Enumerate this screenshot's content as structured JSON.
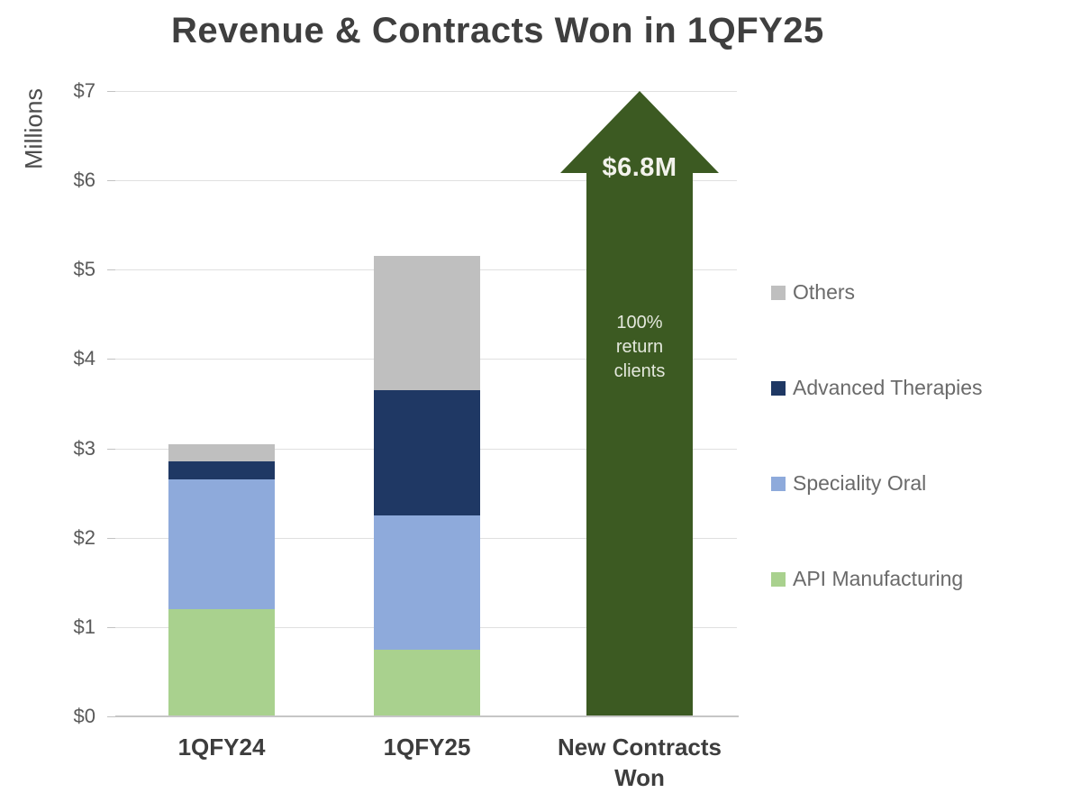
{
  "title": "Revenue & Contracts Won in 1QFY25",
  "y_axis": {
    "label": "Millions",
    "ticks": [
      {
        "label": "$7",
        "value": 7
      },
      {
        "label": "$6",
        "value": 6
      },
      {
        "label": "$5",
        "value": 5
      },
      {
        "label": "$4",
        "value": 4
      },
      {
        "label": "$3",
        "value": 3
      },
      {
        "label": "$2",
        "value": 2
      },
      {
        "label": "$1",
        "value": 1
      },
      {
        "label": "$0",
        "value": 0
      }
    ]
  },
  "legend": {
    "items": [
      {
        "label": "Others",
        "color": "#BFBFBF"
      },
      {
        "label": "Advanced Therapies",
        "color": "#1F3864"
      },
      {
        "label": "Speciality Oral",
        "color": "#8EAADB"
      },
      {
        "label": "API Manufacturing",
        "color": "#A9D18E"
      }
    ]
  },
  "chart_data": {
    "type": "bar",
    "subtype": "stacked-column-with-growth-arrow",
    "title": "Revenue & Contracts Won in 1QFY25",
    "xlabel": "",
    "ylabel": "Millions",
    "ylim": [
      0,
      7
    ],
    "y_tick_prefix": "$",
    "grid": true,
    "legend_position": "right",
    "categories": [
      "1QFY24",
      "1QFY25",
      "New Contracts Won"
    ],
    "series": [
      {
        "name": "API Manufacturing",
        "color": "#A9D18E",
        "values": [
          1.2,
          0.75
        ]
      },
      {
        "name": "Speciality Oral",
        "color": "#8EAADB",
        "values": [
          1.45,
          1.5
        ]
      },
      {
        "name": "Advanced Therapies",
        "color": "#1F3864",
        "values": [
          0.2,
          1.4
        ]
      },
      {
        "name": "Others",
        "color": "#BFBFBF",
        "values": [
          0.2,
          1.5
        ]
      }
    ],
    "stack_totals": [
      3.05,
      5.15
    ],
    "arrow": {
      "category": "New Contracts Won",
      "value": 6.8,
      "value_label": "$6.8M",
      "annotation": "100% return clients",
      "annotation_lines": [
        "100%",
        "return",
        "clients"
      ],
      "color": "#3C5A22"
    }
  }
}
